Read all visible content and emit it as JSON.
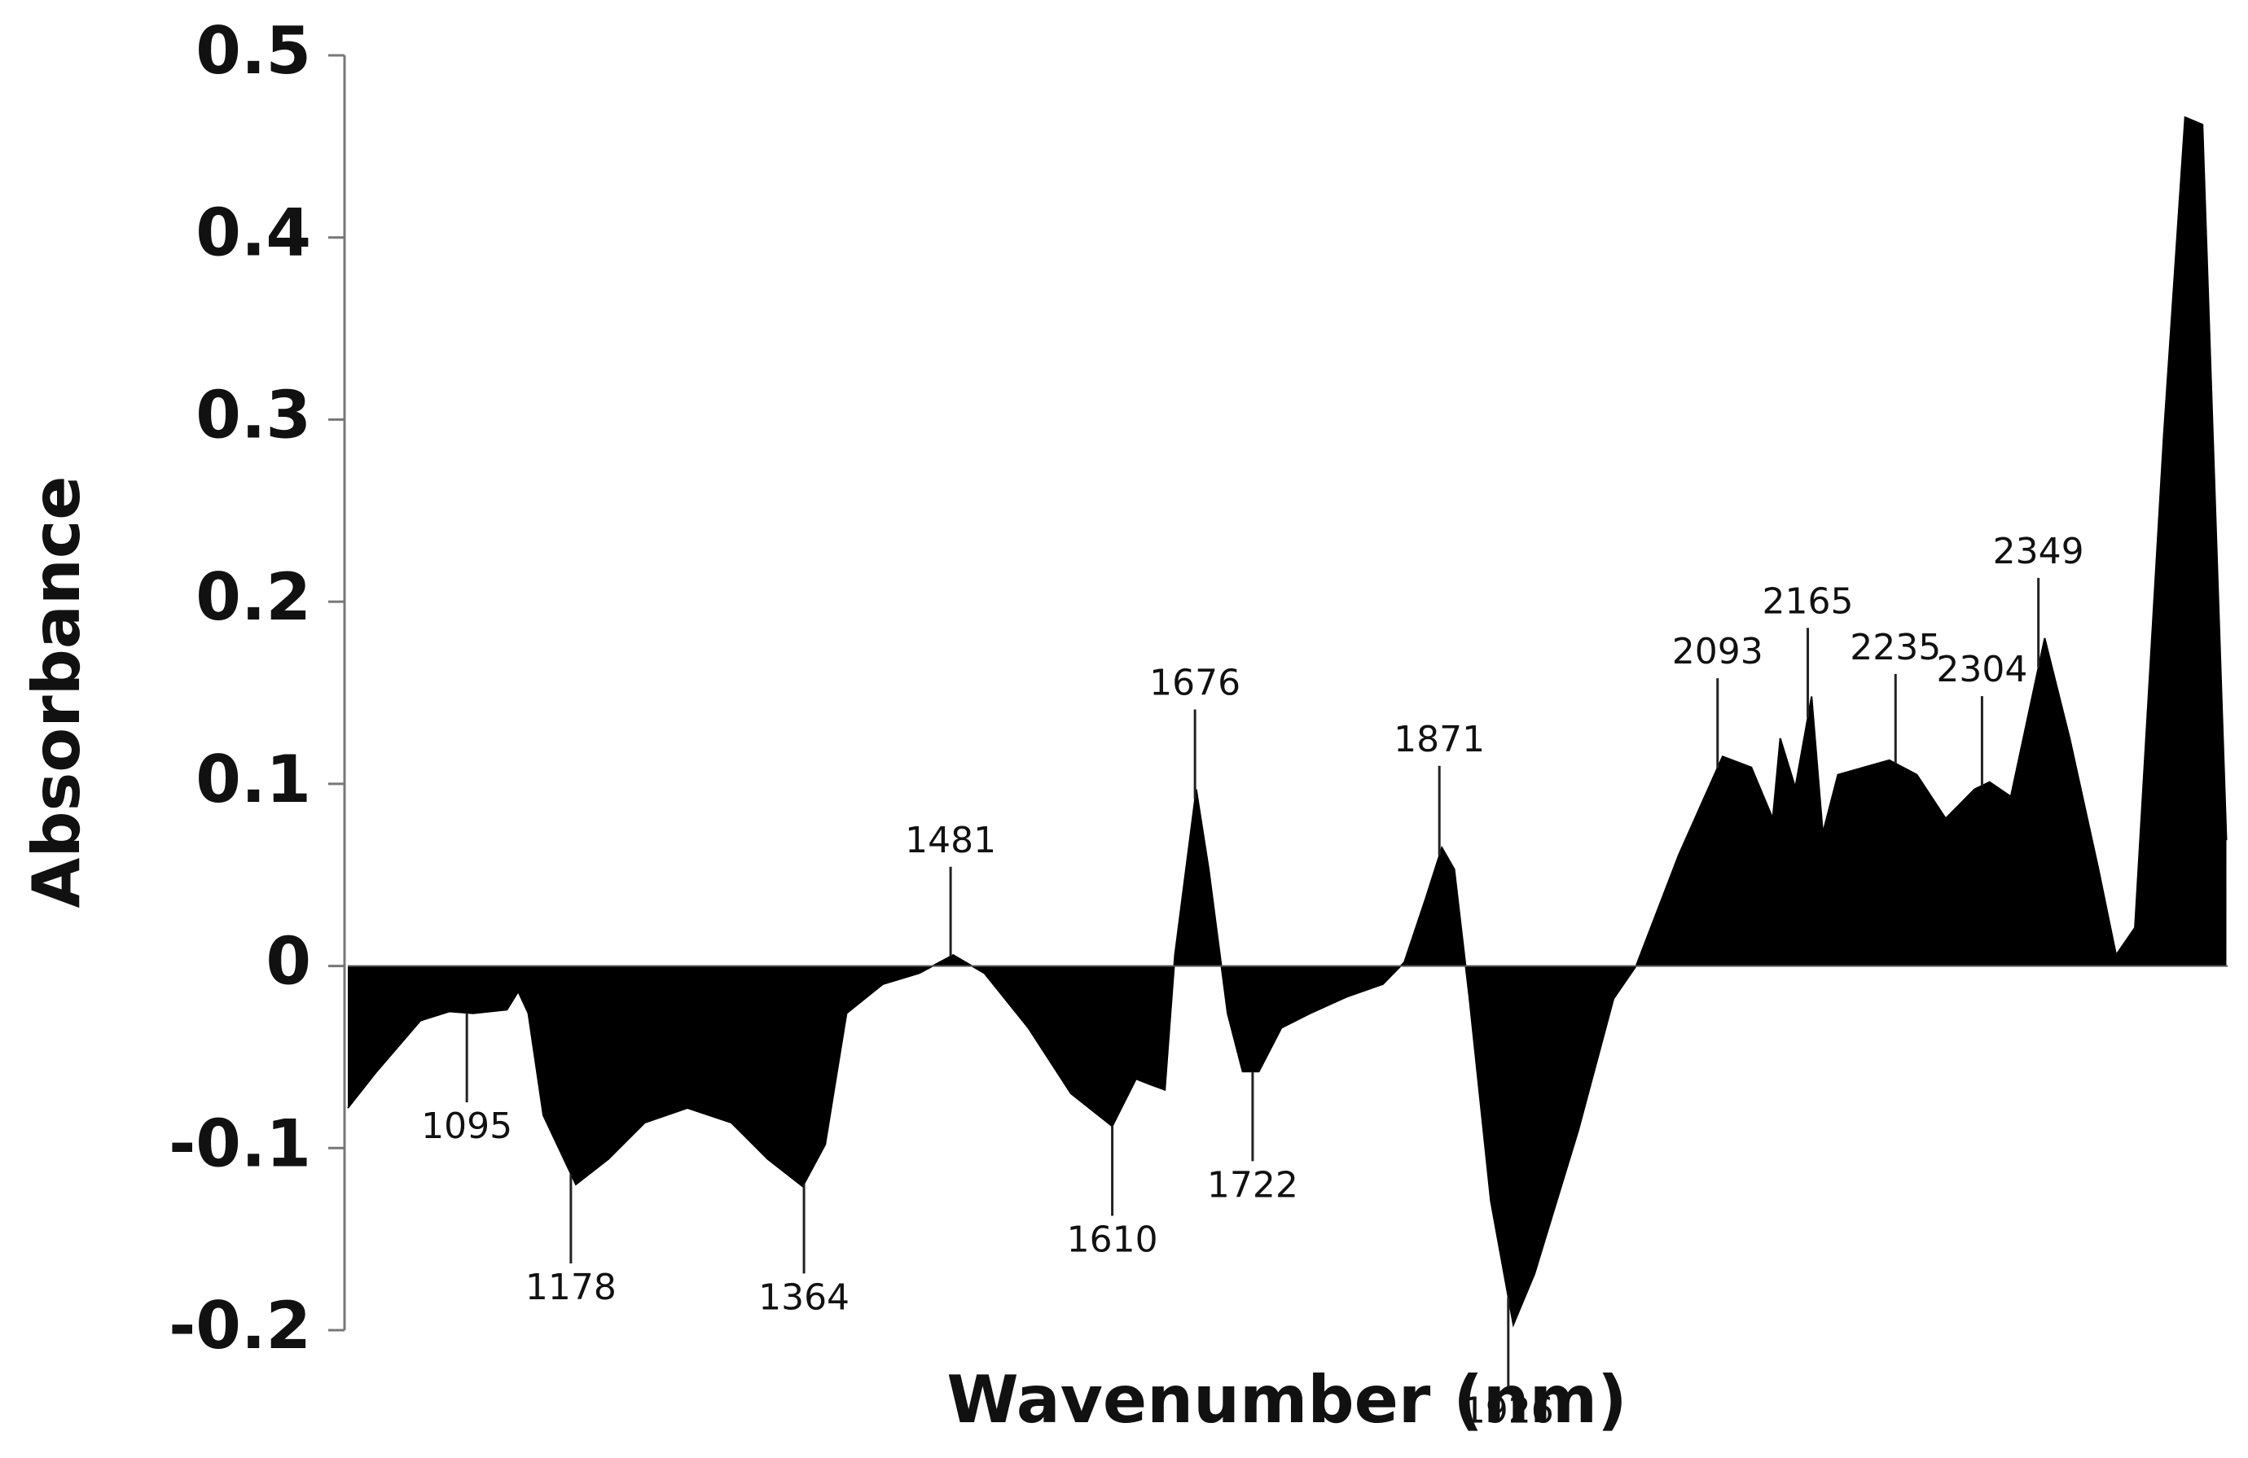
{
  "chart_data": {
    "type": "area",
    "xlabel": "Wavenumber (nm)",
    "ylabel": "Absorbance",
    "color": "#000000",
    "xlim": [
      1000,
      2500
    ],
    "ylim": [
      -0.2,
      0.5
    ],
    "yticks": [
      -0.2,
      -0.1,
      0,
      0.1,
      0.2,
      0.3,
      0.4,
      0.5
    ],
    "x": [
      1000,
      1023,
      1058,
      1081,
      1100,
      1127,
      1136,
      1144,
      1156,
      1182,
      1208,
      1237,
      1271,
      1306,
      1335,
      1363,
      1381,
      1398,
      1427,
      1456,
      1483,
      1508,
      1543,
      1577,
      1610,
      1629,
      1640,
      1652,
      1660,
      1677,
      1687,
      1702,
      1714,
      1727,
      1745,
      1768,
      1797,
      1826,
      1843,
      1860,
      1873,
      1883,
      1895,
      1912,
      1930,
      1947,
      1982,
      2010,
      2028,
      2062,
      2097,
      2120,
      2137,
      2143,
      2155,
      2168,
      2177,
      2189,
      2230,
      2252,
      2275,
      2298,
      2310,
      2327,
      2354,
      2374,
      2397,
      2411,
      2426,
      2449,
      2466,
      2480,
      2499
    ],
    "values": [
      -0.078,
      -0.058,
      -0.03,
      -0.025,
      -0.026,
      -0.024,
      -0.014,
      -0.026,
      -0.082,
      -0.12,
      -0.106,
      -0.086,
      -0.078,
      -0.086,
      -0.106,
      -0.121,
      -0.098,
      -0.026,
      -0.01,
      -0.004,
      0.006,
      -0.004,
      -0.034,
      -0.07,
      -0.088,
      -0.062,
      -0.065,
      -0.068,
      0.006,
      0.097,
      0.053,
      -0.026,
      -0.058,
      -0.058,
      -0.034,
      -0.026,
      -0.017,
      -0.01,
      0.002,
      0.037,
      0.065,
      0.053,
      -0.018,
      -0.129,
      -0.197,
      -0.169,
      -0.09,
      -0.018,
      0,
      0.061,
      0.115,
      0.109,
      0.081,
      0.125,
      0.098,
      0.148,
      0.073,
      0.105,
      0.113,
      0.105,
      0.081,
      0.097,
      0.101,
      0.093,
      0.18,
      0.125,
      0.053,
      0.006,
      0.021,
      0.291,
      0.466,
      0.462,
      0.069
    ],
    "peaks": [
      1095,
      1178,
      1364,
      1481,
      1610,
      1676,
      1722,
      1871,
      1926,
      2093,
      2165,
      2235,
      2304,
      2349
    ]
  }
}
